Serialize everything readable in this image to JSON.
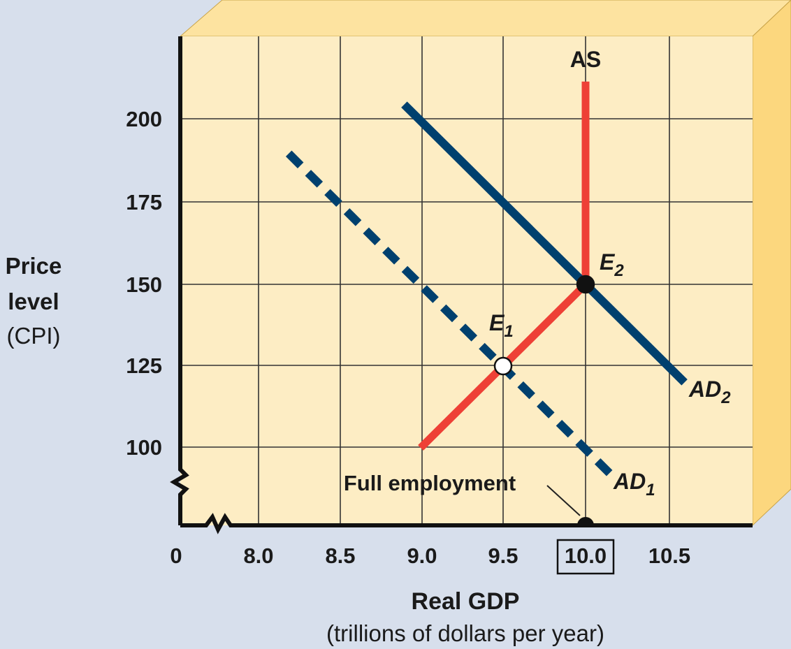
{
  "colors": {
    "background": "#d7dfec",
    "plot_face": "#fdedc4",
    "box_top": "#fde3a0",
    "box_side": "#fcd77e",
    "grid": "#333333",
    "axis": "#111111",
    "ad_line": "#00406e",
    "as_line": "#ee4036"
  },
  "chart_data": {
    "type": "line",
    "x_axis": {
      "ticks": [
        "0",
        "8.0",
        "8.5",
        "9.0",
        "9.5",
        "10.0",
        "10.5"
      ],
      "boxed_tick": "10.0",
      "label": "Real GDP",
      "sublabel": "(trillions of dollars per year)",
      "broken_axis": true
    },
    "y_axis": {
      "ticks": [
        "100",
        "125",
        "150",
        "175",
        "200"
      ],
      "label_lines": [
        "Price",
        "level",
        "(CPI)"
      ],
      "broken_axis": true
    },
    "grid": true,
    "series": [
      {
        "name": "AS",
        "style": "solid",
        "color": "#ee4036",
        "points": [
          [
            9.0,
            100
          ],
          [
            10.0,
            150
          ],
          [
            10.0,
            212
          ]
        ]
      },
      {
        "name": "AD1",
        "label_main": "AD",
        "label_sub": "1",
        "style": "dashed",
        "color": "#00406e",
        "points": [
          [
            8.2,
            190
          ],
          [
            10.15,
            92
          ]
        ]
      },
      {
        "name": "AD2",
        "label_main": "AD",
        "label_sub": "2",
        "style": "solid",
        "color": "#00406e",
        "points": [
          [
            8.9,
            205
          ],
          [
            10.6,
            120
          ]
        ]
      }
    ],
    "points": [
      {
        "name": "E1",
        "label_main": "E",
        "label_sub": "1",
        "x": 9.5,
        "y": 125,
        "fill": "white"
      },
      {
        "name": "E2",
        "label_main": "E",
        "label_sub": "2",
        "x": 10.0,
        "y": 150,
        "fill": "black"
      }
    ],
    "annotations": [
      {
        "text": "Full employment",
        "x": 10.0
      }
    ]
  }
}
